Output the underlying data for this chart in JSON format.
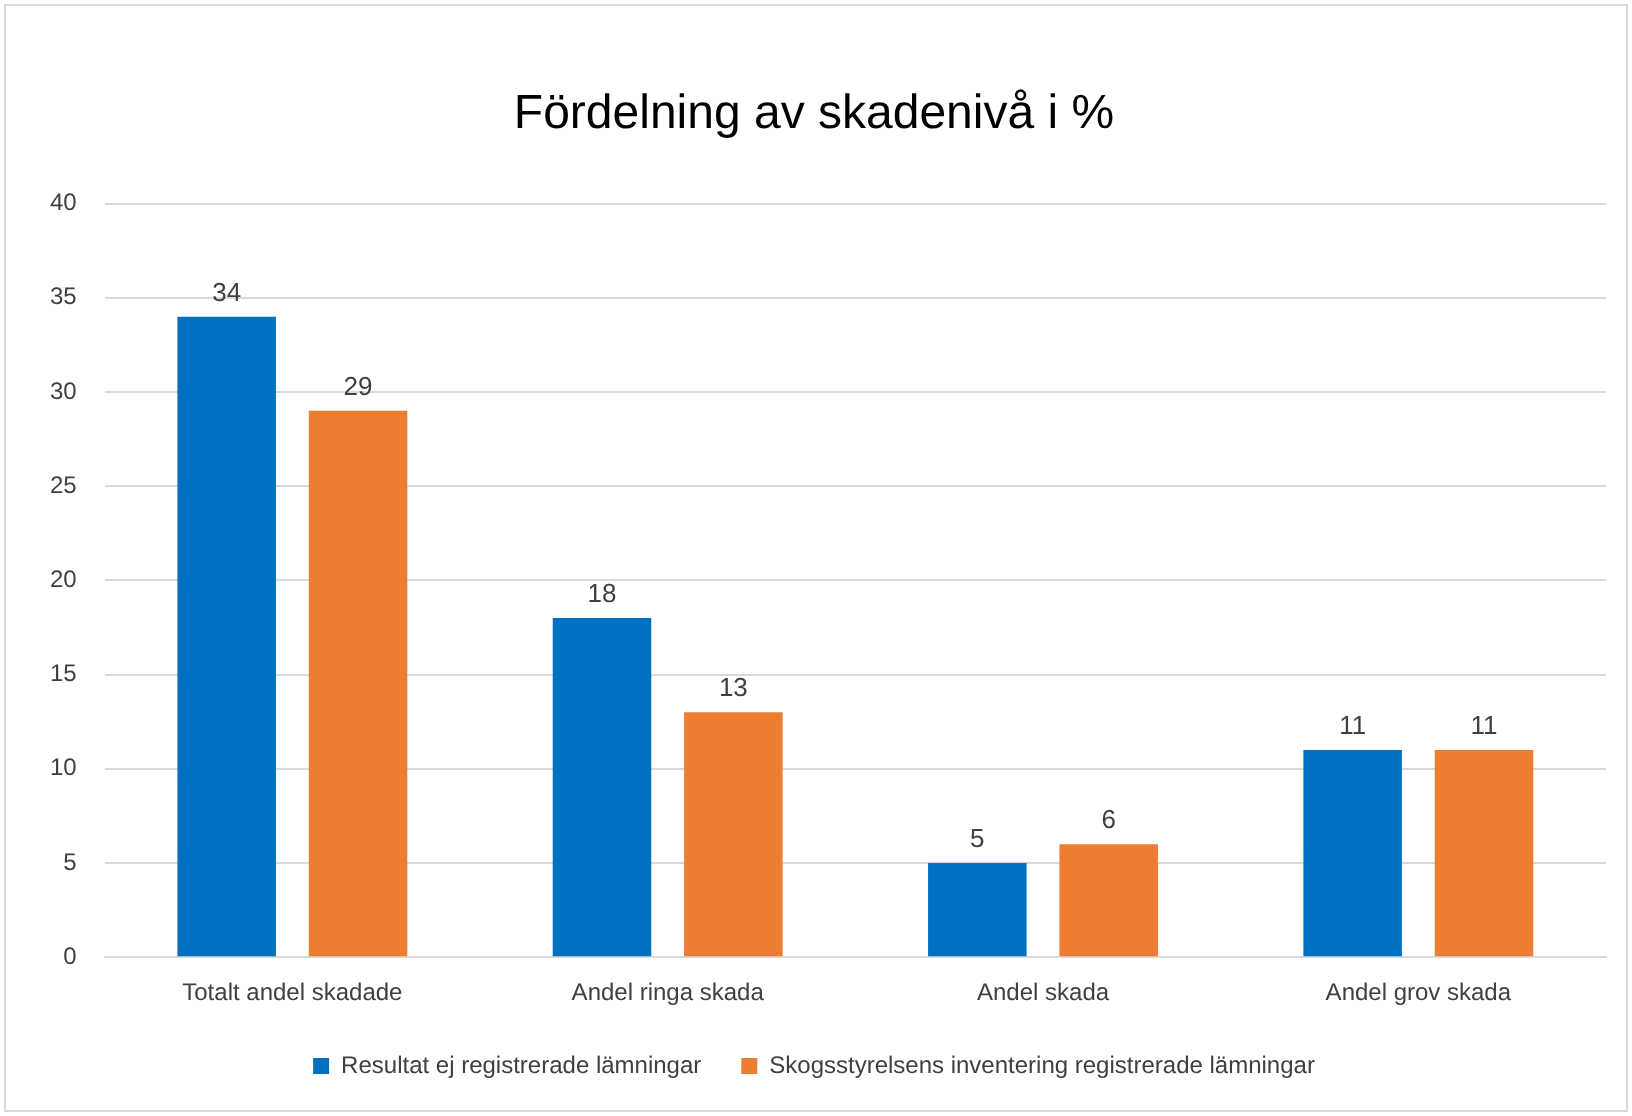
{
  "chart_data": {
    "type": "bar",
    "title": "Fördelning av skadenivå i %",
    "categories": [
      "Totalt andel skadade",
      "Andel ringa skada",
      "Andel skada",
      "Andel grov skada"
    ],
    "series": [
      {
        "name": "Resultat ej registrerade lämningar",
        "color": "#0070c0",
        "values": [
          34,
          18,
          5,
          11
        ]
      },
      {
        "name": "Skogsstyrelsens inventering registrerade lämningar",
        "color": "#ed7d31",
        "values": [
          29,
          13,
          6,
          11
        ]
      }
    ],
    "ylim": [
      0,
      40
    ],
    "yticks": [
      0,
      5,
      10,
      15,
      20,
      25,
      30,
      35,
      40
    ],
    "grid": "y",
    "legend": "bottom",
    "data_labels": true
  }
}
